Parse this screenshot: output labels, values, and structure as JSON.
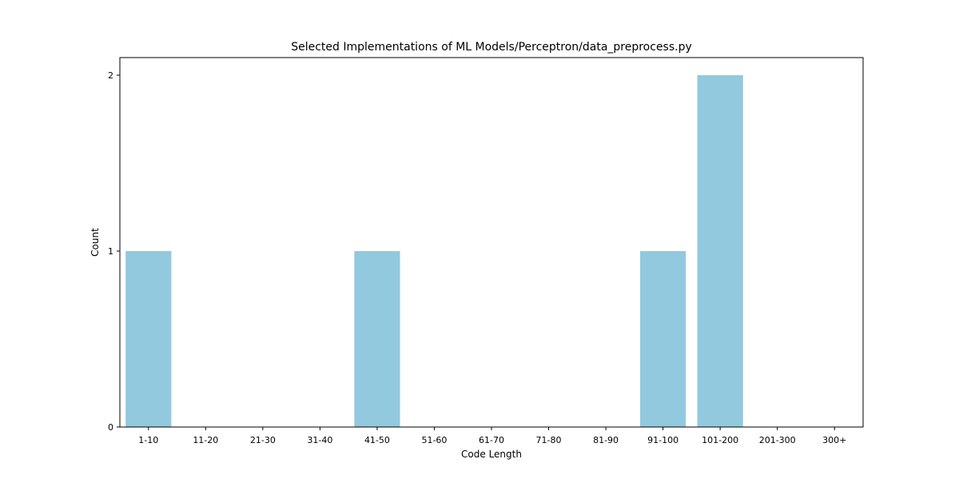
{
  "chart_data": {
    "type": "bar",
    "title": "Selected Implementations of ML Models/Perceptron/data_preprocess.py",
    "xlabel": "Code Length",
    "ylabel": "Count",
    "categories": [
      "1-10",
      "11-20",
      "21-30",
      "31-40",
      "41-50",
      "51-60",
      "61-70",
      "71-80",
      "81-90",
      "91-100",
      "101-200",
      "201-300",
      "300+"
    ],
    "values": [
      1,
      0,
      0,
      0,
      1,
      0,
      0,
      0,
      0,
      1,
      2,
      0,
      0
    ],
    "yticks": [
      0,
      1,
      2
    ],
    "ylim": [
      0,
      2.1
    ],
    "grid": false,
    "bar_color": "#92c9df"
  }
}
